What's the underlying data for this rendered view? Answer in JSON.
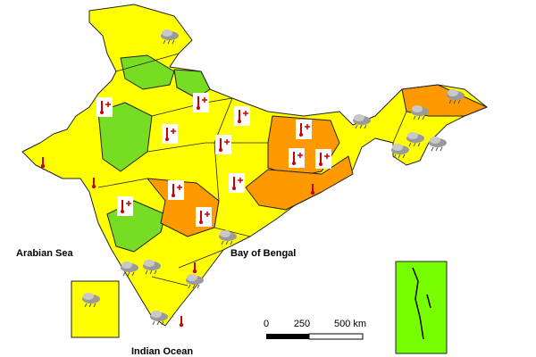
{
  "labels": {
    "arabian_sea": "Arabian Sea",
    "bay_of_bengal": "Bay of Bengal",
    "indian_ocean": "Indian Ocean"
  },
  "scale_bar": {
    "ticks": [
      "0",
      "250",
      "500 km"
    ]
  }
}
